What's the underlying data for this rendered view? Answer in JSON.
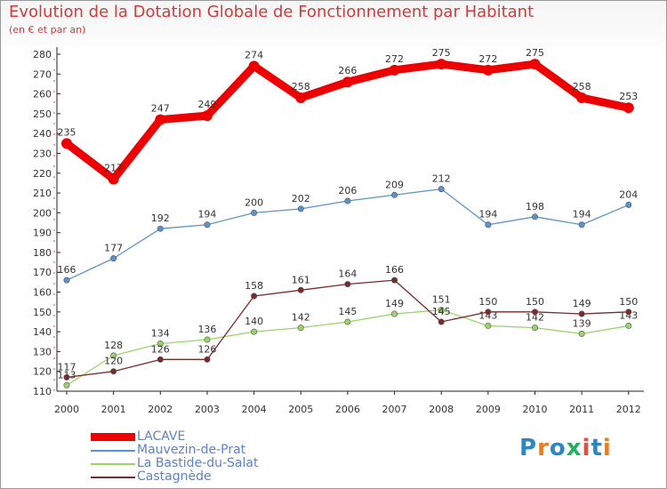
{
  "chart_data": {
    "type": "line",
    "title": "Evolution de la Dotation Globale de Fonctionnement par Habitant",
    "subtitle": "(en € et par an)",
    "xlabel": "",
    "ylabel": "",
    "x": [
      "2000",
      "2001",
      "2002",
      "2003",
      "2004",
      "2005",
      "2006",
      "2007",
      "2008",
      "2009",
      "2010",
      "2011",
      "2012"
    ],
    "ylim": [
      110,
      280
    ],
    "yticks": [
      110,
      120,
      130,
      140,
      150,
      160,
      170,
      180,
      190,
      200,
      210,
      220,
      230,
      240,
      250,
      260,
      270,
      280
    ],
    "grid": false,
    "legend_position": "bottom-left",
    "series": [
      {
        "name": "LACAVE",
        "color": "#ee0000",
        "emphasis": "thick",
        "values": [
          235,
          217,
          247,
          249,
          274,
          258,
          266,
          272,
          275,
          272,
          275,
          258,
          253
        ],
        "labels": [
          "235",
          "217",
          "247",
          "249",
          "274",
          "258",
          "266",
          "272",
          "275",
          "272",
          "275",
          "258",
          "253"
        ]
      },
      {
        "name": "Mauvezin-de-Prat",
        "color": "#5b93c8",
        "emphasis": "normal",
        "values": [
          166,
          177,
          192,
          194,
          200,
          202,
          206,
          209,
          212,
          194,
          198,
          194,
          204
        ],
        "labels": [
          "166",
          "177",
          "192",
          "194",
          "200",
          "202",
          "206",
          "209",
          "212",
          "194",
          "198",
          "194",
          "204"
        ]
      },
      {
        "name": "La Bastide-du-Salat",
        "color": "#9bd36b",
        "emphasis": "normal",
        "values": [
          113,
          128,
          134,
          136,
          140,
          142,
          145,
          149,
          151,
          143,
          142,
          139,
          143
        ],
        "labels": [
          "113",
          "128",
          "134",
          "136",
          "140",
          "142",
          "145",
          "149",
          "151",
          "143",
          "142",
          "139",
          "143"
        ]
      },
      {
        "name": "Castagnède",
        "color": "#7a2a2a",
        "emphasis": "normal",
        "values": [
          117,
          120,
          126,
          126,
          158,
          161,
          164,
          166,
          145,
          150,
          150,
          149,
          150
        ],
        "labels": [
          "117",
          "120",
          "126",
          "126",
          "158",
          "161",
          "164",
          "166",
          "145",
          "150",
          "150",
          "149",
          "150"
        ]
      }
    ]
  },
  "logo": {
    "text": "Proxiti",
    "letters": [
      "P",
      "r",
      "o",
      "x",
      "i",
      "t",
      "i"
    ],
    "colors": [
      "#2e86c1",
      "#e67e22",
      "#2e86c1",
      "#27ae60",
      "#e74c3c",
      "#2e86c1",
      "#e67e22"
    ]
  }
}
